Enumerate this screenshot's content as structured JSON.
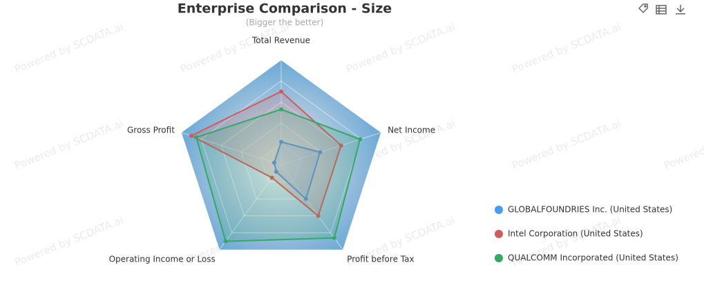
{
  "chart_data": {
    "type": "radar",
    "title": "Enterprise Comparison - Size",
    "subtitle": "(Bigger the better)",
    "watermark": "Powered by SCDATA.ai",
    "categories": [
      "Total Revenue",
      "Net Income",
      "Profit before Tax",
      "Operating Income or Loss",
      "Gross Profit"
    ],
    "rlim": [
      0,
      100
    ],
    "rticks": [
      20,
      40,
      60,
      80,
      100
    ],
    "legend": "right",
    "series": [
      {
        "name": "GLOBALFOUNDRIES Inc. (United States)",
        "color": "#4a9bf0",
        "values": [
          22,
          39,
          40,
          8,
          7
        ]
      },
      {
        "name": "Intel Corporation (United States)",
        "color": "#d45a5a",
        "values": [
          70,
          60,
          60,
          15,
          90
        ]
      },
      {
        "name": "QUALCOMM Incorporated (United States)",
        "color": "#35a862",
        "values": [
          53,
          79,
          86,
          90,
          85
        ]
      }
    ]
  }
}
